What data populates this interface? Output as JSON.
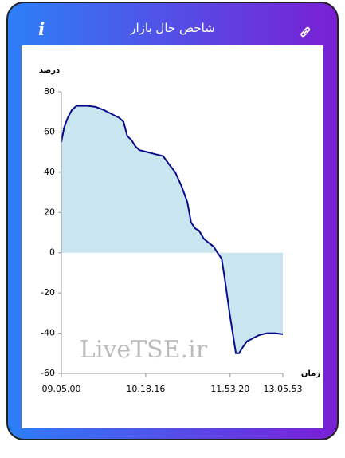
{
  "header": {
    "title": "شاخص حال بازار",
    "info_icon": "i"
  },
  "chart_data": {
    "type": "line",
    "y_label": "درصد",
    "x_label": "زمان",
    "watermark": "LiveTSE.ir",
    "x": [
      0,
      5,
      12,
      20,
      29,
      35,
      50,
      65,
      80,
      95,
      110,
      118,
      125,
      133,
      140,
      148,
      163,
      178,
      193,
      204,
      216,
      228,
      239,
      246,
      254,
      261,
      270,
      279,
      289,
      296,
      304,
      311,
      319,
      325,
      331,
      337,
      344,
      352,
      360,
      367,
      375,
      390,
      405,
      420
    ],
    "values": [
      55,
      62,
      67,
      71,
      73,
      73,
      73,
      72.5,
      71,
      69,
      67,
      65,
      58,
      56,
      53,
      51,
      50,
      49,
      48,
      44,
      40,
      33,
      25,
      15,
      12,
      11,
      7,
      5,
      3,
      0,
      -3,
      -15,
      -30,
      -40,
      -50,
      -50,
      -47,
      -44,
      -43,
      -42,
      -41,
      -40,
      -40,
      -40.5
    ],
    "color": "#0a0a8c",
    "area_color": "#c9e6f0",
    "xlim": [
      0,
      420
    ],
    "xticks": [
      {
        "value": 0,
        "label": "09.05.00"
      },
      {
        "value": 160,
        "label": "10.18.16"
      },
      {
        "value": 320,
        "label": "11.53.20"
      },
      {
        "value": 420,
        "label": "13.05.53"
      }
    ],
    "ylim": [
      -60,
      80
    ],
    "yticks": [
      -60,
      -40,
      -20,
      0,
      20,
      40,
      60,
      80
    ]
  }
}
